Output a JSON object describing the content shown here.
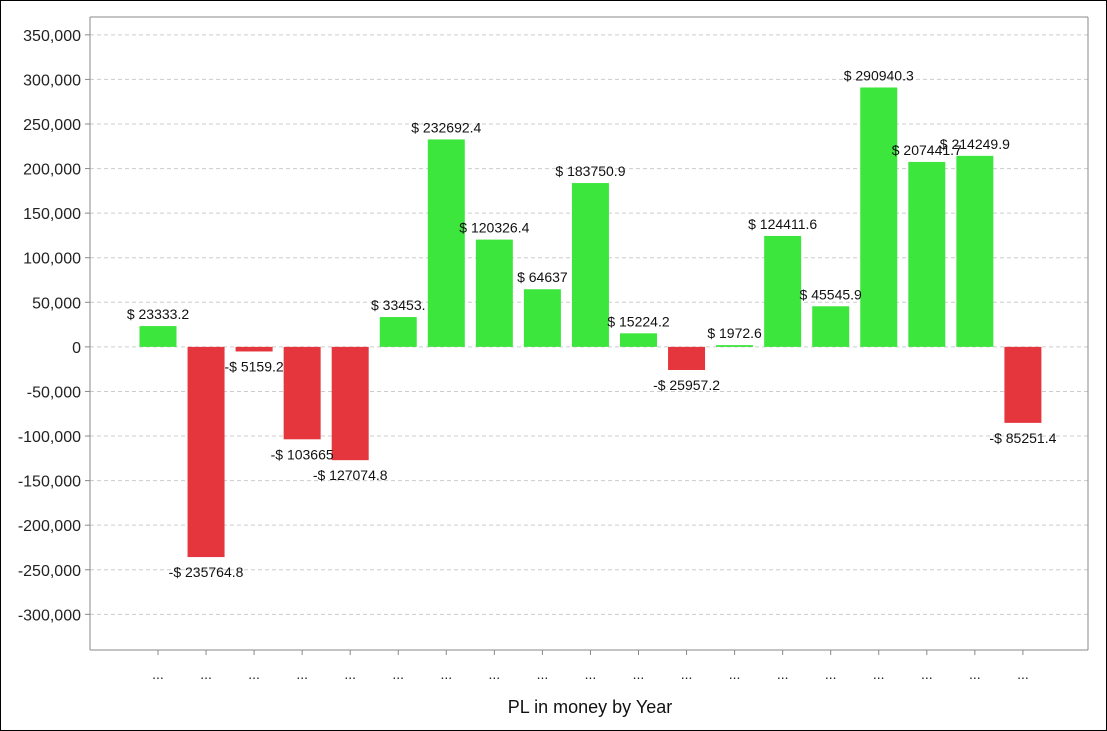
{
  "chart_data": {
    "type": "bar",
    "xlabel": "PL in money by Year",
    "ylabel": "",
    "ylim": [
      -340000,
      370000
    ],
    "yticks": [
      350000,
      300000,
      250000,
      200000,
      150000,
      100000,
      50000,
      0,
      -50000,
      -100000,
      -150000,
      -200000,
      -250000,
      -300000
    ],
    "ytick_labels": [
      "350,000",
      "300,000",
      "250,000",
      "200,000",
      "150,000",
      "100,000",
      "50,000",
      "0",
      "-50,000",
      "-100,000",
      "-150,000",
      "-200,000",
      "-250,000",
      "-300,000"
    ],
    "grid": true,
    "categories": [
      "...",
      "...",
      "...",
      "...",
      "...",
      "...",
      "...",
      "...",
      "...",
      "...",
      "...",
      "...",
      "...",
      "...",
      "...",
      "...",
      "...",
      "...",
      "..."
    ],
    "values": [
      23333.2,
      -235764.8,
      -5159.2,
      -103665,
      -127074.8,
      33453.1,
      232692.4,
      120326.4,
      64637,
      183750.9,
      15224.2,
      -25957.2,
      1972.6,
      124411.6,
      45545.9,
      290940.3,
      207441.7,
      214249.9,
      -85251.4
    ],
    "data_labels": [
      "$ 23333.2",
      "-$ 235764.8",
      "-$ 5159.2",
      "-$ 103665",
      "-$ 127074.8",
      "$ 33453.",
      "$ 232692.4",
      "$ 120326.4",
      "$ 64637",
      "$ 183750.9",
      "$ 15224.2",
      "-$ 25957.2",
      "$ 1972.6",
      "$ 124411.6",
      "$ 45545.9",
      "$ 290940.3",
      "$ 207441.7",
      "$ 214249.9",
      "-$ 85251.4"
    ],
    "colors": {
      "positive": "#3de63d",
      "negative": "#e5363d",
      "grid": "#cccccc",
      "axis": "#888888"
    }
  }
}
